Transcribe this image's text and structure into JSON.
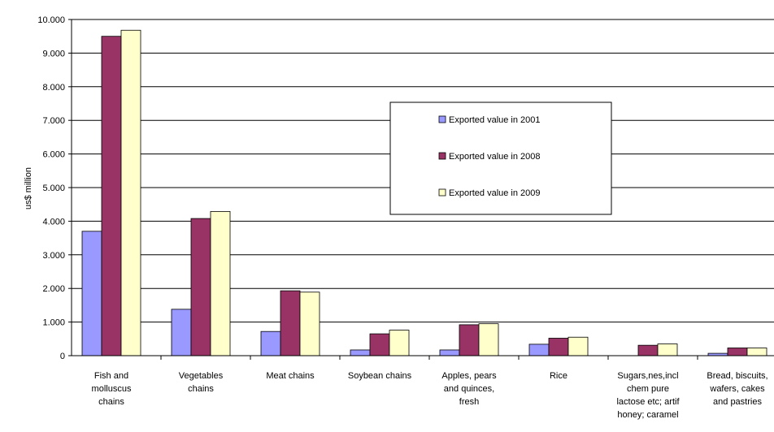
{
  "chart_data": {
    "type": "bar",
    "ylabel": "us$ million",
    "ylim": [
      0,
      10000
    ],
    "yticks": [
      0,
      1000,
      2000,
      3000,
      4000,
      5000,
      6000,
      7000,
      8000,
      9000,
      10000
    ],
    "ytick_labels": [
      "0",
      "1.000",
      "2.000",
      "3.000",
      "4.000",
      "5.000",
      "6.000",
      "7.000",
      "8.000",
      "9.000",
      "10.000"
    ],
    "grid": true,
    "legend_position": "center",
    "categories": [
      [
        "Fish and",
        "molluscus",
        "chains"
      ],
      [
        "Vegetables",
        "chains"
      ],
      [
        "Meat chains"
      ],
      [
        "Soybean chains"
      ],
      [
        "Apples, pears",
        "and quinces,",
        "fresh"
      ],
      [
        "Rice"
      ],
      [
        "Sugars,nes,incl",
        "chem pure",
        "lactose etc; artif",
        "honey; caramel"
      ],
      [
        "Bread, biscuits,",
        "wafers, cakes",
        "and pastries"
      ]
    ],
    "series": [
      {
        "name": "Exported value in 2001",
        "color": "#9999ff",
        "values": [
          3700,
          1380,
          720,
          170,
          170,
          340,
          0,
          70
        ]
      },
      {
        "name": "Exported value in 2008",
        "color": "#993366",
        "values": [
          9500,
          4080,
          1930,
          650,
          920,
          520,
          310,
          230
        ]
      },
      {
        "name": "Exported value in 2009",
        "color": "#ffffcc",
        "values": [
          9680,
          4290,
          1890,
          760,
          950,
          550,
          350,
          230
        ]
      }
    ]
  }
}
